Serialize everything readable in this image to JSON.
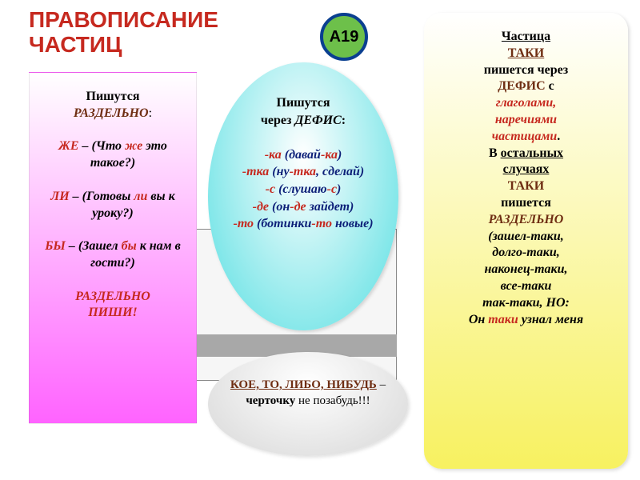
{
  "title": {
    "text1": "ПРАВОПИСАНИЕ",
    "text2": "ЧАСТИЦ",
    "color": "#c6291f",
    "fontsize": 28
  },
  "badge": {
    "label": "А19",
    "bg": "#6dc04a",
    "border": "#0a3f90",
    "color": "#000000",
    "fontsize": 20
  },
  "pink": {
    "bg_gradient_top": "#ffffff",
    "bg_gradient_bottom": "#ff63ff",
    "head1": "Пишутся",
    "head2": "РАЗДЕЛЬНО",
    "head2_color": "#6f2e13",
    "colon": ":",
    "r1_a": "ЖЕ",
    "r1_a_color": "#c6291f",
    "r1_b": " – (Что ",
    "r1_c": "же",
    "r1_d": " это такое?)",
    "r2_a": "ЛИ",
    "r2_a_color": "#c6291f",
    "r2_b": " – (Готовы ",
    "r2_c": "ли",
    "r2_d": " вы к уроку?)",
    "r3_a": "БЫ",
    "r3_a_color": "#c6291f",
    "r3_b": " – (Зашел ",
    "r3_c": "бы",
    "r3_d": " к нам в гости?)",
    "foot1": "РАЗДЕЛЬНО",
    "foot2": "ПИШИ!",
    "foot_color": "#c6291f"
  },
  "center": {
    "bg_gradient_top": "#ffffff",
    "bg_gradient_bottom": "#5ee0e3",
    "head1": "Пишутся",
    "head2a": "через ",
    "head2b": "ДЕФИС",
    "head2_color": "#000000",
    "colon": ":",
    "navy": "#0c1f78",
    "red": "#c6291f",
    "l1a": "-ка",
    "l1b": " (давай",
    "l1c": "-ка",
    "l1d": ")",
    "l2a": "-тка",
    "l2b": " (ну",
    "l2c": "-тка",
    "l2d": ", сделай)",
    "l3a": "-с",
    "l3b": " (слушаю",
    "l3c": "-с",
    "l3d": ")",
    "l4a": "-де",
    "l4b": " (он",
    "l4c": "-де",
    "l4d": " зайдет)",
    "l5a": "-то",
    "l5b": " (ботинки",
    "l5c": "-то",
    "l5d": " новые)"
  },
  "bottom": {
    "bg_gradient_top": "#ffffff",
    "bg_gradient_bottom": "#d9d9d9",
    "l1": "КОЕ, ТО, ЛИБО, НИБУДЬ",
    "l1_color": "#6f2e13",
    "dash": " – ",
    "l2a": "черточку",
    "l2b": " не позабудь!!!"
  },
  "right": {
    "bg_gradient_top": "#ffffff",
    "bg_gradient_bottom": "#f7f160",
    "t1": "Частица",
    "t2": "ТАКИ",
    "t2_color": "#6f2e13",
    "t3": "пишется через",
    "t4": "ДЕФИС",
    "t4_color": "#6f2e13",
    "t4b": "  с",
    "t5": "глаголами,",
    "t6": "наречиями",
    "t7": "частицами",
    "t567_color": "#c6291f",
    "dot": ".",
    "t8a": "В ",
    "t8b": "остальных",
    "t9": "случаях",
    "t10": "ТАКИ",
    "t11": "пишется",
    "t12": "РАЗДЕЛЬНО",
    "t12_color": "#6f2e13",
    "ex_open": "(",
    "ex1": "зашел-таки,",
    "ex2": "долго-таки,",
    "ex3": "наконец-таки,",
    "ex4": "все-таки",
    "ex5a": "так-таки, ",
    "ex5b": "НО:",
    "ex6a": "Он ",
    "ex6b": "таки",
    "ex6c": " узнал меня",
    "taki_color": "#c6291f"
  }
}
